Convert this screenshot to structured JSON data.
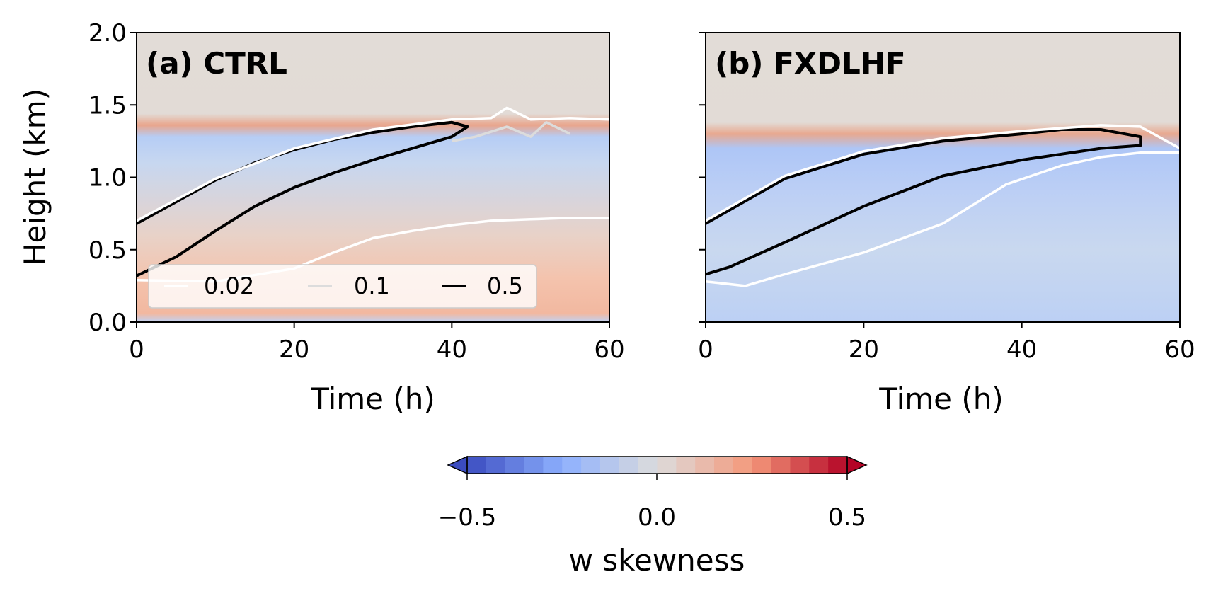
{
  "figure": {
    "y_axis_label": "Height (km)",
    "colorbar": {
      "label": "w skewness",
      "ticks": [
        "−0.5",
        "0.0",
        "0.5"
      ],
      "min": -0.5,
      "max": 0.5,
      "levels": 20,
      "cmap": "coolwarm",
      "extend": "both"
    },
    "legend": {
      "entries": [
        {
          "label": "0.02",
          "color": "#ffffff"
        },
        {
          "label": "0.1",
          "color": "#dcdcdc"
        },
        {
          "label": "0.5",
          "color": "#000000"
        }
      ]
    }
  },
  "chart_data": [
    {
      "type": "heatmap",
      "panel_label": "(a) CTRL",
      "xlabel": "Time (h)",
      "ylabel": "Height (km)",
      "xlim": [
        0,
        60
      ],
      "ylim": [
        0,
        2.0
      ],
      "xticks": [
        "0",
        "20",
        "40",
        "60"
      ],
      "yticks": [
        "0.0",
        "0.5",
        "1.0",
        "1.5",
        "2.0"
      ],
      "field": "w skewness (filled contours)",
      "contours": [
        {
          "level": "0.5",
          "color": "#000000",
          "x": [
            0,
            5,
            10,
            15,
            20,
            25,
            30,
            35,
            40,
            42,
            40,
            35,
            30,
            25,
            20,
            15,
            10,
            5,
            0
          ],
          "y": [
            0.68,
            0.83,
            0.98,
            1.1,
            1.19,
            1.26,
            1.31,
            1.35,
            1.38,
            1.35,
            1.28,
            1.2,
            1.12,
            1.03,
            0.93,
            0.8,
            0.63,
            0.45,
            0.32
          ]
        },
        {
          "level": "0.02 (upper)",
          "color": "#ffffff",
          "x": [
            0,
            10,
            20,
            30,
            40,
            45,
            47,
            50,
            55,
            60
          ],
          "y": [
            0.7,
            0.99,
            1.2,
            1.33,
            1.4,
            1.41,
            1.48,
            1.4,
            1.41,
            1.4
          ]
        },
        {
          "level": "0.02 (lower)",
          "color": "#ffffff",
          "x": [
            0,
            10,
            20,
            25,
            30,
            35,
            40,
            45,
            50,
            55,
            60
          ],
          "y": [
            0.29,
            0.28,
            0.37,
            0.48,
            0.58,
            0.63,
            0.67,
            0.7,
            0.71,
            0.72,
            0.72
          ]
        },
        {
          "level": "0.1",
          "color": "#dcdcdc",
          "x": [
            40,
            43,
            47,
            50,
            52,
            55
          ],
          "y": [
            1.25,
            1.28,
            1.35,
            1.28,
            1.38,
            1.3
          ]
        }
      ]
    },
    {
      "type": "heatmap",
      "panel_label": "(b) FXDLHF",
      "xlabel": "Time (h)",
      "ylabel": "",
      "xlim": [
        0,
        60
      ],
      "ylim": [
        0,
        2.0
      ],
      "xticks": [
        "0",
        "20",
        "40",
        "60"
      ],
      "yticks": [],
      "field": "w skewness (filled contours)",
      "contours": [
        {
          "level": "0.5",
          "color": "#000000",
          "x": [
            0,
            10,
            20,
            30,
            40,
            45,
            50,
            55,
            55,
            50,
            45,
            40,
            30,
            20,
            10,
            3,
            0
          ],
          "y": [
            0.68,
            0.99,
            1.16,
            1.25,
            1.3,
            1.33,
            1.33,
            1.28,
            1.22,
            1.2,
            1.16,
            1.12,
            1.01,
            0.8,
            0.55,
            0.38,
            0.33
          ]
        },
        {
          "level": "0.02 (upper)",
          "color": "#ffffff",
          "x": [
            0,
            10,
            20,
            30,
            40,
            50,
            55,
            60
          ],
          "y": [
            0.7,
            1.01,
            1.18,
            1.27,
            1.32,
            1.36,
            1.35,
            1.2
          ]
        },
        {
          "level": "0.02 (lower)",
          "color": "#ffffff",
          "x": [
            0,
            5,
            10,
            20,
            30,
            38,
            45,
            50,
            55,
            60
          ],
          "y": [
            0.28,
            0.25,
            0.33,
            0.48,
            0.68,
            0.95,
            1.08,
            1.14,
            1.17,
            1.17
          ]
        }
      ]
    }
  ]
}
